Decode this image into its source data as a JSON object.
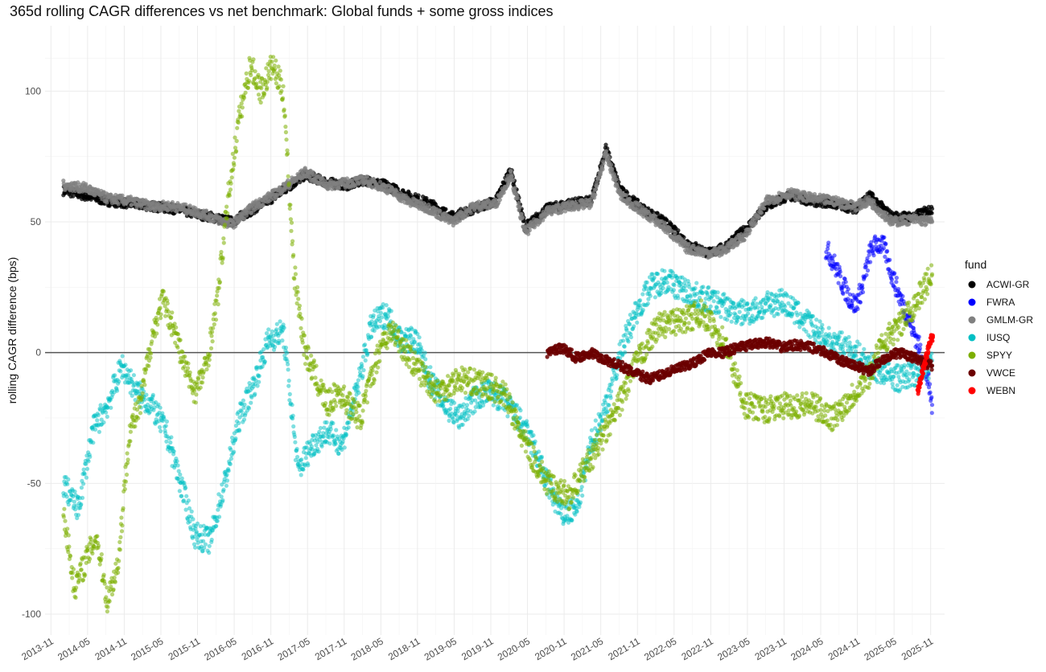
{
  "chart_data": {
    "type": "scatter",
    "title": "365d rolling CAGR differences vs net benchmark: Global funds + some gross indices",
    "xlabel": "",
    "ylabel": "rolling CAGR difference (bps)",
    "ylim": [
      -108,
      125
    ],
    "yticks": [
      -100,
      -50,
      0,
      50,
      100
    ],
    "xlim": [
      2013.75,
      2026.02
    ],
    "xticks": [
      {
        "label": "2013-11",
        "t": 2013.83
      },
      {
        "label": "2014-05",
        "t": 2014.33
      },
      {
        "label": "2014-11",
        "t": 2014.83
      },
      {
        "label": "2015-05",
        "t": 2015.33
      },
      {
        "label": "2015-11",
        "t": 2015.83
      },
      {
        "label": "2016-05",
        "t": 2016.33
      },
      {
        "label": "2016-11",
        "t": 2016.83
      },
      {
        "label": "2017-05",
        "t": 2017.33
      },
      {
        "label": "2017-11",
        "t": 2017.83
      },
      {
        "label": "2018-05",
        "t": 2018.33
      },
      {
        "label": "2018-11",
        "t": 2018.83
      },
      {
        "label": "2019-05",
        "t": 2019.33
      },
      {
        "label": "2019-11",
        "t": 2019.83
      },
      {
        "label": "2020-05",
        "t": 2020.33
      },
      {
        "label": "2020-11",
        "t": 2020.83
      },
      {
        "label": "2021-05",
        "t": 2021.33
      },
      {
        "label": "2021-11",
        "t": 2021.83
      },
      {
        "label": "2022-05",
        "t": 2022.33
      },
      {
        "label": "2022-11",
        "t": 2022.83
      },
      {
        "label": "2023-05",
        "t": 2023.33
      },
      {
        "label": "2023-11",
        "t": 2023.83
      },
      {
        "label": "2024-05",
        "t": 2024.33
      },
      {
        "label": "2024-11",
        "t": 2024.83
      },
      {
        "label": "2025-05",
        "t": 2025.33
      },
      {
        "label": "2025-11",
        "t": 2025.83
      }
    ],
    "reference_line_y": 0,
    "legend_title": "fund",
    "series": [
      {
        "name": "ACWI-GR",
        "color": "#000000",
        "opacity": 0.75,
        "x": [
          2014.0,
          2014.3,
          2014.6,
          2014.9,
          2015.2,
          2015.5,
          2015.8,
          2016.0,
          2016.3,
          2016.6,
          2016.9,
          2017.1,
          2017.3,
          2017.6,
          2017.9,
          2018.1,
          2018.4,
          2018.7,
          2019.0,
          2019.3,
          2019.6,
          2019.9,
          2020.1,
          2020.3,
          2020.6,
          2020.9,
          2021.2,
          2021.4,
          2021.6,
          2021.9,
          2022.2,
          2022.5,
          2022.8,
          2023.0,
          2023.3,
          2023.6,
          2023.9,
          2024.2,
          2024.5,
          2024.8,
          2025.0,
          2025.3,
          2025.6,
          2025.85
        ],
        "y": [
          62,
          60,
          58,
          57,
          56,
          55,
          53,
          52,
          50,
          55,
          60,
          64,
          68,
          65,
          64,
          66,
          64,
          60,
          57,
          52,
          55,
          58,
          70,
          48,
          55,
          57,
          58,
          78,
          62,
          55,
          50,
          42,
          38,
          40,
          47,
          56,
          60,
          58,
          57,
          55,
          60,
          52,
          52,
          55
        ]
      },
      {
        "name": "FWRA",
        "color": "#0000ff",
        "opacity": 0.55,
        "x": [
          2024.4,
          2024.5,
          2024.6,
          2024.7,
          2024.8,
          2024.9,
          2025.0,
          2025.1,
          2025.2,
          2025.3,
          2025.4,
          2025.5,
          2025.6,
          2025.7,
          2025.8,
          2025.85
        ],
        "y": [
          40,
          35,
          28,
          22,
          18,
          25,
          38,
          42,
          40,
          30,
          22,
          15,
          8,
          0,
          -12,
          -20
        ]
      },
      {
        "name": "GMLM-GR",
        "color": "#808080",
        "opacity": 0.75,
        "x": [
          2014.0,
          2014.3,
          2014.6,
          2014.9,
          2015.2,
          2015.5,
          2015.8,
          2016.0,
          2016.3,
          2016.6,
          2016.9,
          2017.1,
          2017.3,
          2017.6,
          2017.9,
          2018.1,
          2018.4,
          2018.7,
          2019.0,
          2019.3,
          2019.6,
          2019.9,
          2020.1,
          2020.3,
          2020.6,
          2020.9,
          2021.2,
          2021.4,
          2021.6,
          2021.9,
          2022.2,
          2022.5,
          2022.8,
          2023.0,
          2023.3,
          2023.6,
          2023.9,
          2024.2,
          2024.5,
          2024.8,
          2025.0,
          2025.3,
          2025.6,
          2025.85
        ],
        "y": [
          64,
          63,
          59,
          58,
          56,
          56,
          54,
          52,
          49,
          56,
          61,
          65,
          69,
          64,
          65,
          66,
          63,
          58,
          55,
          50,
          56,
          57,
          68,
          46,
          54,
          56,
          57,
          76,
          60,
          54,
          48,
          40,
          38,
          39,
          45,
          58,
          61,
          59,
          58,
          56,
          58,
          50,
          51,
          50
        ]
      },
      {
        "name": "IUSQ",
        "color": "#00bfc4",
        "opacity": 0.5,
        "x": [
          2014.0,
          2014.2,
          2014.4,
          2014.6,
          2014.8,
          2015.0,
          2015.2,
          2015.4,
          2015.6,
          2015.8,
          2016.0,
          2016.2,
          2016.4,
          2016.6,
          2016.8,
          2017.0,
          2017.2,
          2017.4,
          2017.6,
          2017.8,
          2018.0,
          2018.2,
          2018.4,
          2018.6,
          2018.8,
          2019.0,
          2019.2,
          2019.4,
          2019.6,
          2019.8,
          2020.0,
          2020.2,
          2020.4,
          2020.6,
          2020.8,
          2021.0,
          2021.2,
          2021.4,
          2021.6,
          2021.8,
          2022.0,
          2022.2,
          2022.4,
          2022.6,
          2022.8,
          2023.0,
          2023.2,
          2023.4,
          2023.6,
          2023.8,
          2024.0,
          2024.2,
          2024.4,
          2024.6,
          2024.8,
          2025.0,
          2025.2,
          2025.4,
          2025.6,
          2025.8,
          2025.85
        ],
        "y": [
          -50,
          -60,
          -30,
          -20,
          -5,
          -15,
          -20,
          -30,
          -50,
          -70,
          -72,
          -50,
          -25,
          -12,
          5,
          8,
          -45,
          -35,
          -30,
          -35,
          -15,
          10,
          15,
          5,
          5,
          -10,
          -20,
          -25,
          -18,
          -15,
          -18,
          -25,
          -35,
          -50,
          -62,
          -60,
          -35,
          -20,
          0,
          15,
          25,
          28,
          25,
          22,
          20,
          18,
          15,
          16,
          18,
          20,
          15,
          10,
          5,
          3,
          0,
          -5,
          -8,
          -10,
          -8,
          -5,
          -3
        ]
      },
      {
        "name": "SPYY",
        "color": "#7cae00",
        "opacity": 0.55,
        "x": [
          2014.0,
          2014.15,
          2014.3,
          2014.45,
          2014.6,
          2014.75,
          2014.9,
          2015.05,
          2015.2,
          2015.35,
          2015.5,
          2015.65,
          2015.8,
          2015.95,
          2016.1,
          2016.25,
          2016.4,
          2016.55,
          2016.7,
          2016.85,
          2017.0,
          2017.15,
          2017.3,
          2017.45,
          2017.6,
          2017.75,
          2017.9,
          2018.05,
          2018.2,
          2018.35,
          2018.5,
          2018.8,
          2019.1,
          2019.4,
          2019.7,
          2020.0,
          2020.3,
          2020.6,
          2020.9,
          2021.2,
          2021.5,
          2021.8,
          2022.1,
          2022.4,
          2022.7,
          2023.0,
          2023.3,
          2023.6,
          2023.9,
          2024.2,
          2024.5,
          2024.8,
          2025.0,
          2025.2,
          2025.4,
          2025.6,
          2025.85
        ],
        "y": [
          -60,
          -90,
          -80,
          -70,
          -95,
          -80,
          -30,
          -20,
          5,
          20,
          10,
          -5,
          -15,
          -5,
          20,
          60,
          90,
          110,
          100,
          110,
          100,
          30,
          0,
          -10,
          -20,
          -15,
          -20,
          -25,
          -10,
          5,
          8,
          -5,
          -15,
          -10,
          -12,
          -15,
          -35,
          -50,
          -55,
          -40,
          -25,
          -5,
          10,
          12,
          15,
          5,
          -20,
          -22,
          -20,
          -20,
          -25,
          -15,
          -8,
          5,
          10,
          18,
          30
        ]
      },
      {
        "name": "VWCE",
        "color": "#6b0000",
        "opacity": 0.85,
        "x": [
          2020.6,
          2020.8,
          2021.0,
          2021.2,
          2021.4,
          2021.6,
          2021.8,
          2022.0,
          2022.2,
          2022.4,
          2022.6,
          2022.8,
          2023.0,
          2023.2,
          2023.4,
          2023.6,
          2023.8,
          2024.0,
          2024.2,
          2024.4,
          2024.6,
          2024.8,
          2025.0,
          2025.2,
          2025.4,
          2025.6,
          2025.85
        ],
        "y": [
          0,
          2,
          -2,
          0,
          -3,
          -5,
          -8,
          -10,
          -8,
          -6,
          -4,
          0,
          0,
          2,
          3,
          4,
          2,
          3,
          2,
          0,
          -3,
          -5,
          -7,
          -2,
          0,
          -2,
          -5
        ]
      },
      {
        "name": "WEBN",
        "color": "#ff0000",
        "opacity": 0.85,
        "x": [
          2025.65,
          2025.68,
          2025.71,
          2025.74,
          2025.77,
          2025.8,
          2025.83,
          2025.86
        ],
        "y": [
          -15,
          -12,
          -8,
          -5,
          -2,
          2,
          5,
          6
        ]
      }
    ]
  }
}
